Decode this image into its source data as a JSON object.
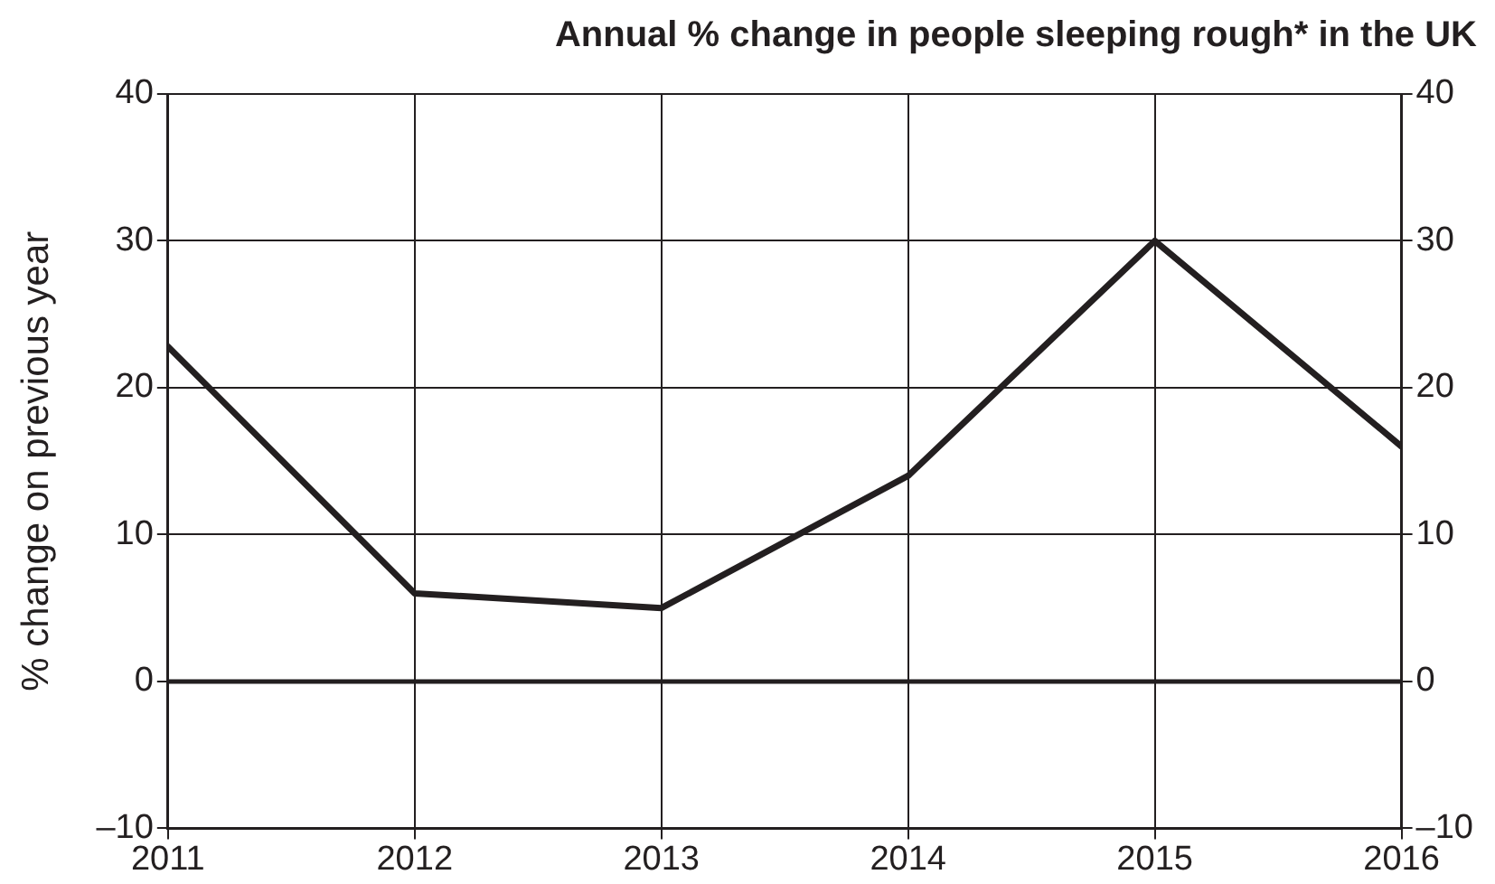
{
  "chart_data": {
    "type": "line",
    "title": "Annual % change in people sleeping rough* in the UK",
    "ylabel": "% change on previous year",
    "x": [
      2011,
      2012,
      2013,
      2014,
      2015,
      2016
    ],
    "series": [
      {
        "color": "#231f20",
        "values": [
          22.8,
          6,
          5,
          14,
          30,
          16
        ]
      }
    ],
    "xlim": [
      2011,
      2016
    ],
    "xticks": [
      2011,
      2012,
      2013,
      2014,
      2015,
      2016
    ],
    "ylim": [
      -10,
      40
    ],
    "yticks": [
      {
        "value": -10,
        "label": "–10"
      },
      0,
      10,
      20,
      30,
      40
    ],
    "y2lim": [
      -10,
      40
    ],
    "y2ticks": [
      {
        "value": -10,
        "label": "–10"
      },
      0,
      10,
      20,
      30,
      40
    ],
    "ref_lines": [
      {
        "axis": "y",
        "value": 0,
        "color": "#231f20"
      }
    ],
    "grid": true,
    "legend": false,
    "marker": "none",
    "line_style": "solid"
  }
}
